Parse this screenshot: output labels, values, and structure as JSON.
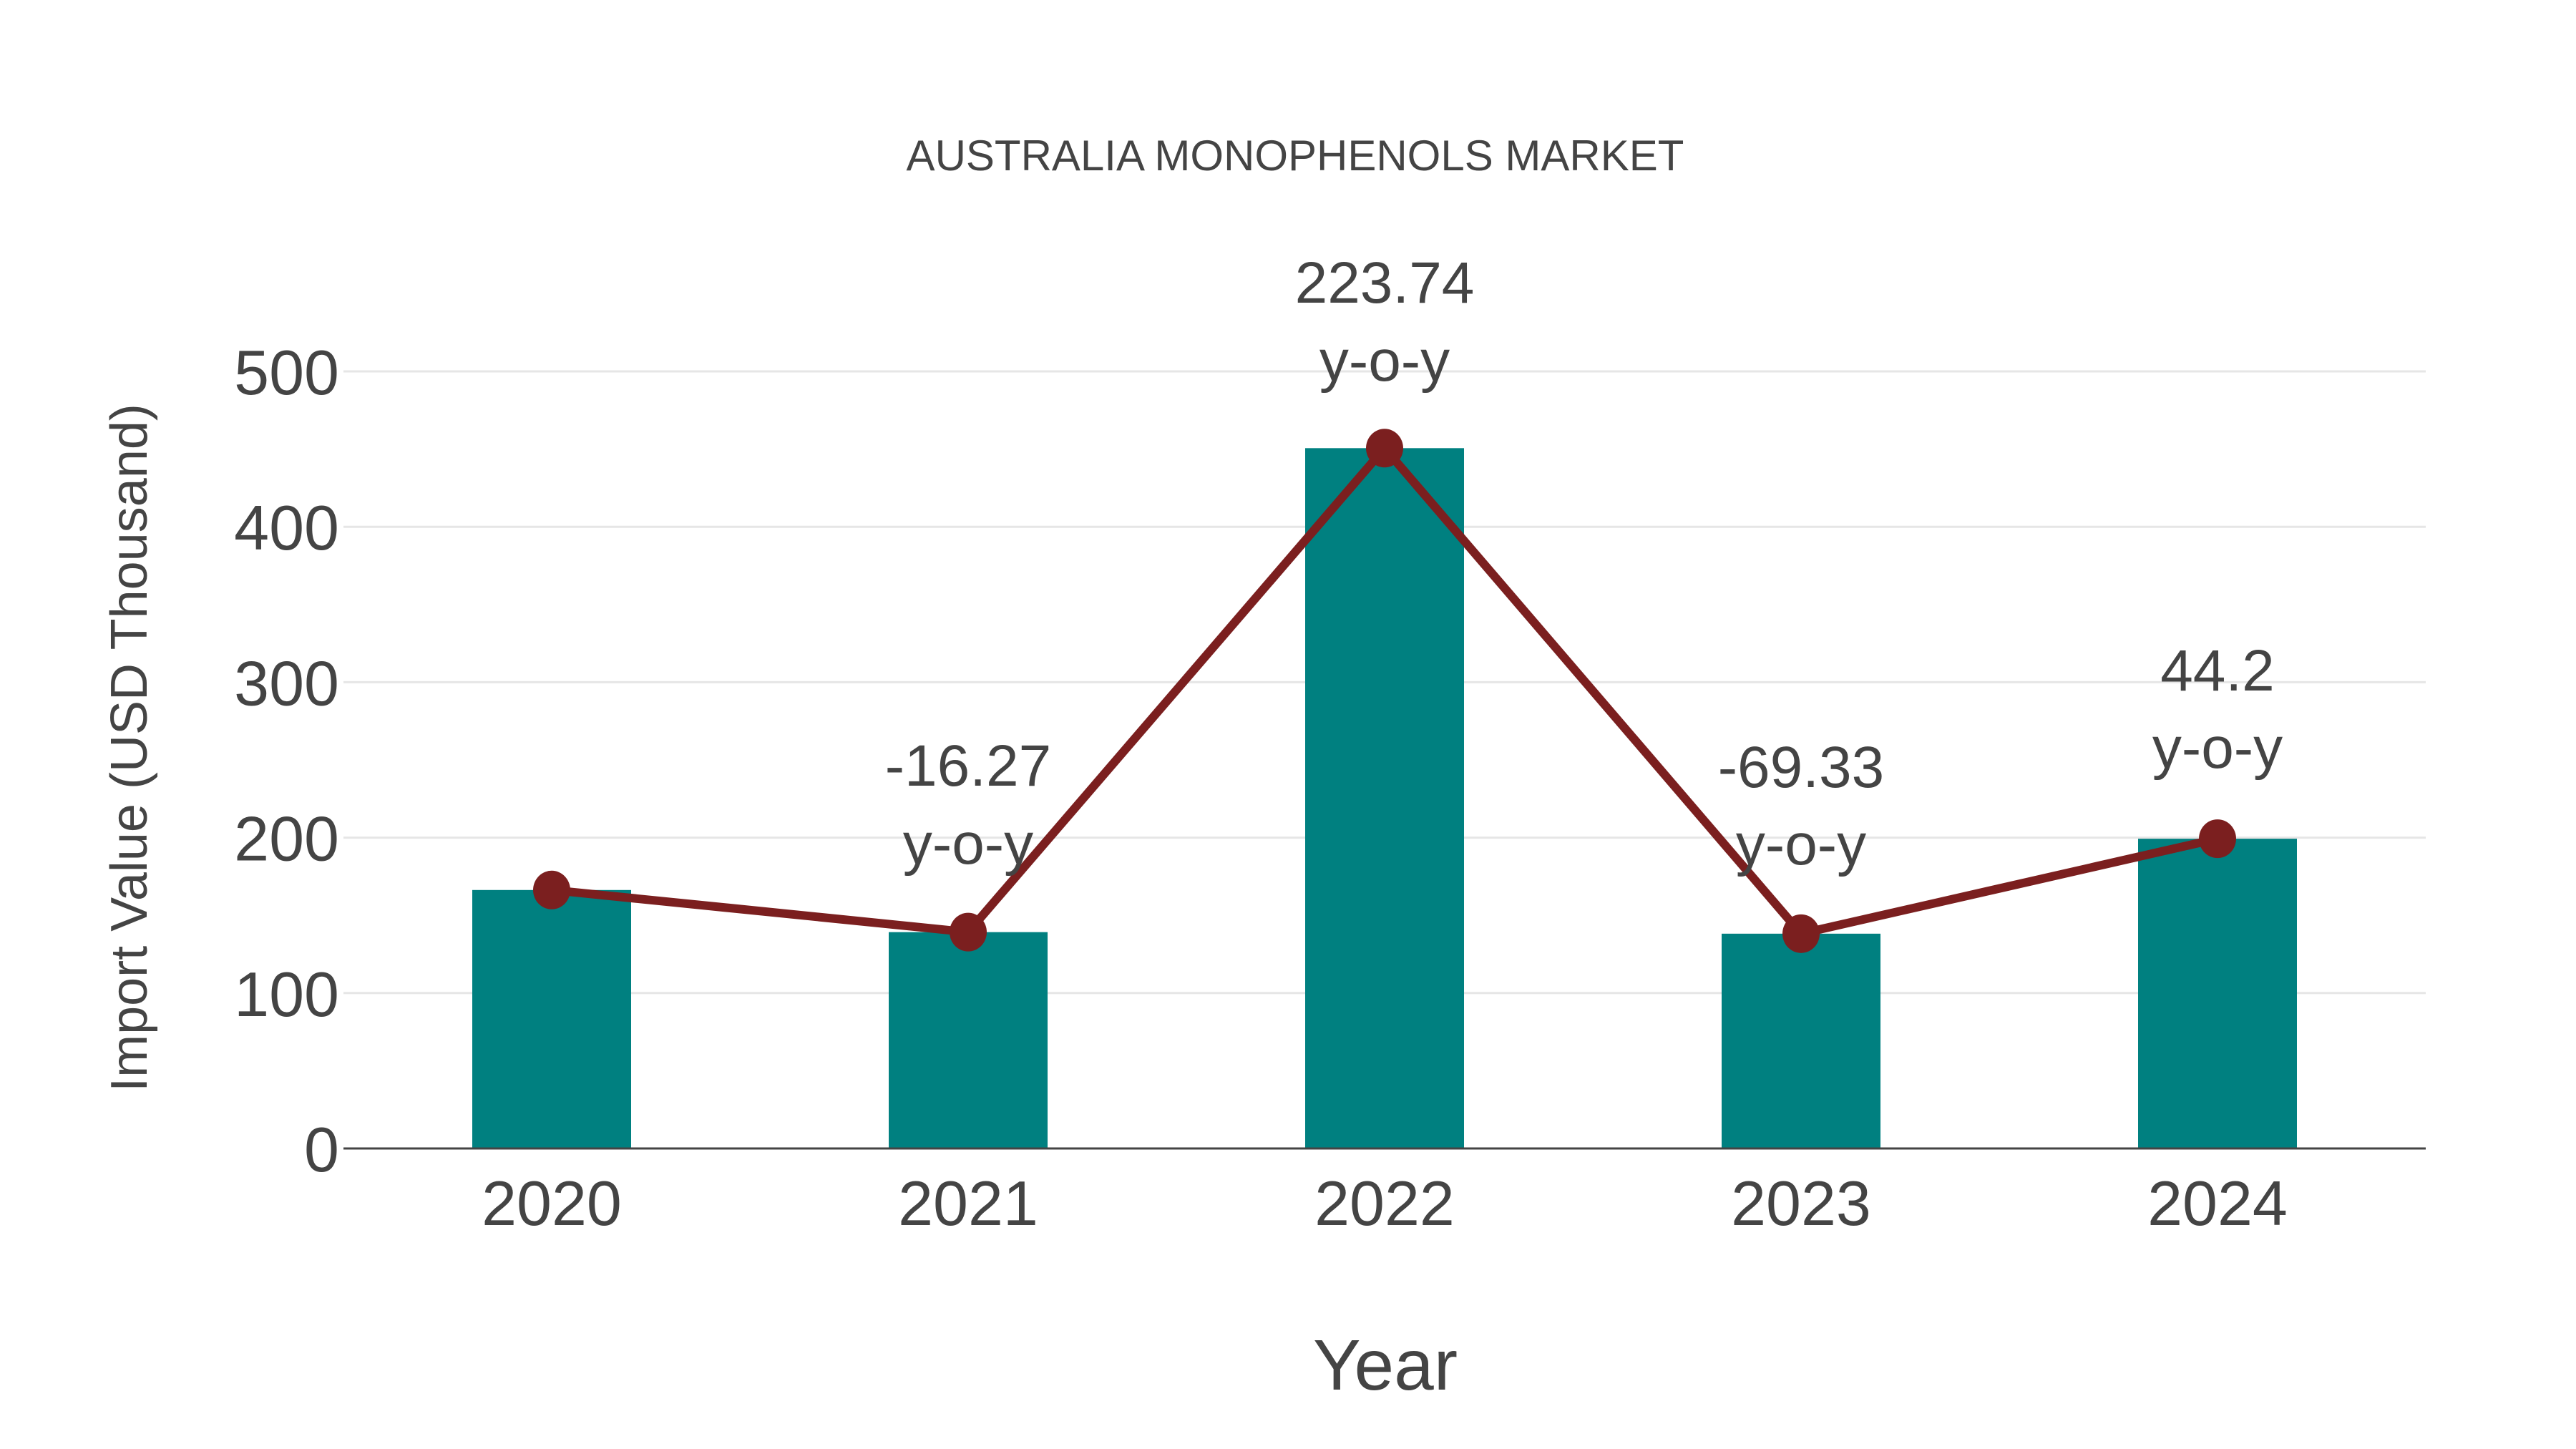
{
  "chart_data": {
    "type": "bar",
    "title": "AUSTRALIA MONOPHENOLS MARKET",
    "xlabel": "Year",
    "ylabel": "Import Value (USD Thousand)",
    "categories": [
      "2020",
      "2021",
      "2022",
      "2023",
      "2024"
    ],
    "series": [
      {
        "name": "Import Value",
        "type": "bar",
        "color": "#008080",
        "values": [
          166.3,
          139.2,
          450.6,
          138.2,
          199.3
        ]
      },
      {
        "name": "Import Value (trend)",
        "type": "line",
        "color": "#7b1f1f",
        "marker": "circle",
        "values": [
          166.3,
          139.2,
          450.6,
          138.2,
          199.3
        ]
      }
    ],
    "annotations": [
      {
        "category": "2021",
        "value": "-16.27",
        "suffix": "y-o-y"
      },
      {
        "category": "2022",
        "value": "223.74",
        "suffix": "y-o-y"
      },
      {
        "category": "2023",
        "value": "-69.33",
        "suffix": "y-o-y"
      },
      {
        "category": "2024",
        "value": "44.2",
        "suffix": "y-o-y"
      }
    ],
    "yticks": [
      0,
      100,
      200,
      300,
      400,
      500
    ],
    "ylim": [
      0,
      500
    ],
    "grid": true,
    "legend": "none"
  },
  "colors": {
    "bar": "#008080",
    "line": "#7b1f1f",
    "text": "#444444",
    "grid": "#e6e6e6",
    "axis": "#444444"
  }
}
